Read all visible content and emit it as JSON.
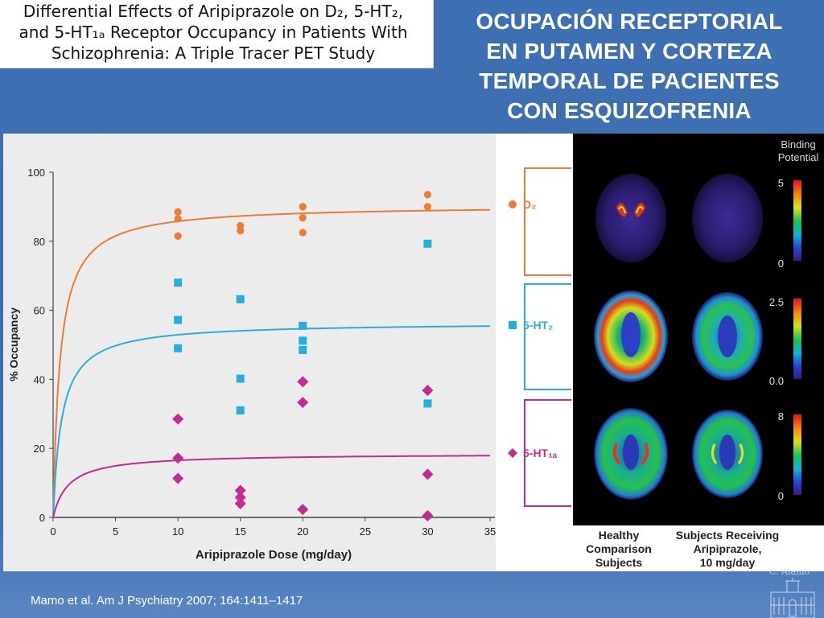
{
  "paper_title": {
    "line1": "Differential Effects of Aripiprazole on D₂, 5-HT₂,",
    "line2": "and 5-HT₁ₐ Receptor Occupancy in Patients With",
    "line3": "Schizophrenia: A Triple Tracer PET Study"
  },
  "slide_title": {
    "line1": "OCUPACIÓN RECEPTORIAL",
    "line2": "EN PUTAMEN Y CORTEZA",
    "line3": "TEMPORAL DE PACIENTES",
    "line4": "CON ESQUIZOFRENIA"
  },
  "citation": "Mamo et al. Am J Psychiatry 2007; 164:1411–1417",
  "watermark": "C. Álamo",
  "colors": {
    "d2": "#ef7a32",
    "ht2": "#27aee0",
    "ht1a": "#c42a92"
  },
  "chart_data": {
    "type": "scatter",
    "xlabel": "Aripiprazole Dose (mg/day)",
    "ylabel": "% Occupancy",
    "xlim": [
      0,
      35
    ],
    "ylim": [
      0,
      100
    ],
    "xticks": [
      "0",
      "5",
      "10",
      "15",
      "20",
      "25",
      "30",
      "35"
    ],
    "yticks": [
      "0",
      "20",
      "40",
      "60",
      "80",
      "100"
    ],
    "grid": false,
    "legend_position": "right",
    "series": [
      {
        "name": "D₂",
        "marker": "circle",
        "points": [
          [
            10,
            88.5
          ],
          [
            10,
            86.5
          ],
          [
            10,
            81.5
          ],
          [
            15,
            84.5
          ],
          [
            15,
            83
          ],
          [
            20,
            90
          ],
          [
            20,
            86.8
          ],
          [
            20,
            82.5
          ],
          [
            30,
            93.5
          ],
          [
            30,
            90
          ]
        ],
        "fit_curve": {
          "emax": 90.5,
          "ed50": 0.55
        }
      },
      {
        "name": "5-HT₂",
        "marker": "square",
        "points": [
          [
            10,
            68
          ],
          [
            10,
            57.2
          ],
          [
            10,
            49
          ],
          [
            15,
            63.2
          ],
          [
            15,
            40.2
          ],
          [
            15,
            31
          ],
          [
            20,
            55.5
          ],
          [
            20,
            51.2
          ],
          [
            20,
            48.5
          ],
          [
            30,
            79.3
          ],
          [
            30,
            33
          ]
        ],
        "fit_curve": {
          "emax": 56.5,
          "ed50": 0.68
        }
      },
      {
        "name": "5-HT₁ₐ",
        "marker": "diamond",
        "points": [
          [
            10,
            28.5
          ],
          [
            10,
            17.2
          ],
          [
            10,
            11.3
          ],
          [
            15,
            7.8
          ],
          [
            15,
            5.8
          ],
          [
            15,
            4
          ],
          [
            20,
            39.3
          ],
          [
            20,
            33.3
          ],
          [
            20,
            2.3
          ],
          [
            30,
            36.8
          ],
          [
            30,
            12.5
          ],
          [
            30,
            0.5
          ]
        ],
        "fit_curve": {
          "emax": 18.5,
          "ed50": 1.2
        }
      }
    ]
  },
  "pet_panel": {
    "header": "Binding Potential",
    "rows": [
      {
        "name": "D₂",
        "scale_max": "5",
        "scale_min": "0"
      },
      {
        "name": "5-HT₂",
        "scale_max": "2.5",
        "scale_min": "0.0"
      },
      {
        "name": "5-HT₁ₐ",
        "scale_max": "8",
        "scale_min": "0"
      }
    ],
    "col_healthy": [
      "Healthy",
      "Comparison",
      "Subjects"
    ],
    "col_treated": [
      "Subjects Receiving",
      "Aripiprazole,",
      "10 mg/day"
    ]
  }
}
